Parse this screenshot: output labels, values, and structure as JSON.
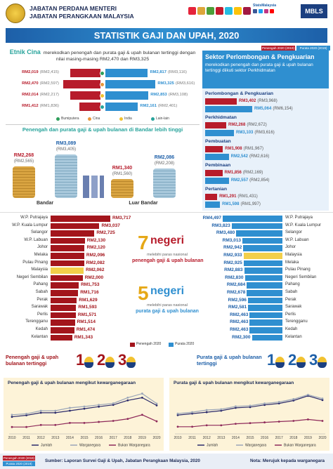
{
  "header": {
    "agency": [
      "JABATAN PERDANA MENTERI",
      "JABATAN PERANGKAAN MALAYSIA"
    ],
    "title": "STATISTIK GAJI DAN UPAH, 2020",
    "brand": "StatsMalaysia",
    "badge": "MBLS"
  },
  "legend": [
    {
      "label": "Penengah 2020 (2019)",
      "color": "#b71c2b"
    },
    {
      "label": "Purata 2020 (2019)",
      "color": "#2f8fd0"
    }
  ],
  "ethnic": {
    "highlight": "Etnik Cina",
    "text": "merekodkan penengah dan purata gaji & upah bulanan tertinggi dengan nilai masing-masing RM2,470 dan RM3,325",
    "groups": [
      {
        "name": "Bumiputera",
        "color": "#2e9e5b",
        "median": {
          "value": 2019,
          "label": "RM2,019",
          "previous": "(RM2,415)"
        },
        "mean": {
          "value": 2817,
          "label": "RM2,817",
          "previous": "(RM3,116)"
        }
      },
      {
        "name": "Cina",
        "color": "#e8973d",
        "median": {
          "value": 2470,
          "label": "RM2,470",
          "previous": "(RM2,597)"
        },
        "mean": {
          "value": 3325,
          "label": "RM3,325",
          "previous": "(RM3,616)"
        }
      },
      {
        "name": "India",
        "color": "#f2c230",
        "median": {
          "value": 2014,
          "label": "RM2,014",
          "previous": "(RM2,217)"
        },
        "mean": {
          "value": 2853,
          "label": "RM2,853",
          "previous": "(RM3,108)"
        }
      },
      {
        "name": "Lain-lain",
        "color": "#27a39b",
        "median": {
          "value": 1412,
          "label": "RM1,412",
          "previous": "(RM1,836)"
        },
        "mean": {
          "value": 2161,
          "label": "RM2,161",
          "previous": "(RM2,401)"
        }
      }
    ]
  },
  "urban": {
    "title": "Penengah dan purata gaji & upah bulanan di Bandar lebih tinggi",
    "groups": [
      {
        "name": "Bandar",
        "median": {
          "value": 2268,
          "label": "RM2,268",
          "previous": "(RM2,565)"
        },
        "mean": {
          "value": 3089,
          "label": "RM3,089",
          "previous": "(RM3,405)"
        }
      },
      {
        "name": "Luar Bandar",
        "median": {
          "value": 1340,
          "label": "RM1,340",
          "previous": "(RM1,560)"
        },
        "mean": {
          "value": 2086,
          "label": "RM2,086",
          "previous": "(RM2,208)"
        }
      }
    ]
  },
  "sector": {
    "title": "Sektor Perlombongan & Pengkuarian",
    "text": "merekodkan penengah dan purata gaji & upah bulanan tertinggi diikuti sektor Perkhidmatan",
    "groups": [
      {
        "name": "Perlombongan & Pengkuarian",
        "median": {
          "value": 3402,
          "label": "RM3,402",
          "previous": "(RM3,968)"
        },
        "mean": {
          "value": 5064,
          "label": "RM5,064",
          "previous": "(RM6,154)"
        }
      },
      {
        "name": "Perkhidmatan",
        "median": {
          "value": 2268,
          "label": "RM2,268",
          "previous": "(RM2,672)"
        },
        "mean": {
          "value": 3103,
          "label": "RM3,103",
          "previous": "(RM3,616)"
        }
      },
      {
        "name": "Pembuatan",
        "median": {
          "value": 1908,
          "label": "RM1,908",
          "previous": "(RM1,967)"
        },
        "mean": {
          "value": 2542,
          "label": "RM2,542",
          "previous": "(RM2,616)"
        }
      },
      {
        "name": "Pembinaan",
        "median": {
          "value": 1856,
          "label": "RM1,856",
          "previous": "(RM2,169)"
        },
        "mean": {
          "value": 2557,
          "label": "RM2,557",
          "previous": "(RM2,854)"
        }
      },
      {
        "name": "Pertanian",
        "median": {
          "value": 1291,
          "label": "RM1,291",
          "previous": "(RM1,431)"
        },
        "mean": {
          "value": 1598,
          "label": "RM1,598",
          "previous": "(RM1,997)"
        }
      }
    ]
  },
  "states": {
    "median": [
      {
        "name": "W.P. Putrajaya",
        "value": 3717,
        "label": "RM3,717",
        "color": "#a3151c"
      },
      {
        "name": "W.P. Kuala Lumpur",
        "value": 3037,
        "label": "RM3,037",
        "color": "#a3151c"
      },
      {
        "name": "Selangor",
        "value": 2725,
        "label": "RM2,725",
        "color": "#a3151c"
      },
      {
        "name": "W.P. Labuan",
        "value": 2130,
        "label": "RM2,130",
        "color": "#a3151c"
      },
      {
        "name": "Johor",
        "value": 2120,
        "label": "RM2,120",
        "color": "#a3151c"
      },
      {
        "name": "Melaka",
        "value": 2096,
        "label": "RM2,096",
        "color": "#a3151c"
      },
      {
        "name": "Pulau Pinang",
        "value": 2082,
        "label": "RM2,082",
        "color": "#a3151c"
      },
      {
        "name": "Malaysia",
        "value": 2062,
        "label": "RM2,062",
        "color": "#f2cf4a"
      },
      {
        "name": "Negeri Sembilan",
        "value": 2000,
        "label": "RM2,000",
        "color": "#a3151c"
      },
      {
        "name": "Pahang",
        "value": 1753,
        "label": "RM1,753",
        "color": "#a3151c"
      },
      {
        "name": "Sabah",
        "value": 1716,
        "label": "RM1,716",
        "color": "#a3151c"
      },
      {
        "name": "Perak",
        "value": 1629,
        "label": "RM1,629",
        "color": "#a3151c"
      },
      {
        "name": "Sarawak",
        "value": 1593,
        "label": "RM1,593",
        "color": "#a3151c"
      },
      {
        "name": "Perlis",
        "value": 1571,
        "label": "RM1,571",
        "color": "#a3151c"
      },
      {
        "name": "Terengganu",
        "value": 1514,
        "label": "RM1,514",
        "color": "#a3151c"
      },
      {
        "name": "Kedah",
        "value": 1474,
        "label": "RM1,474",
        "color": "#a3151c"
      },
      {
        "name": "Kelantan",
        "value": 1343,
        "label": "RM1,343",
        "color": "#a3151c"
      }
    ],
    "mean": [
      {
        "name": "W.P. Putrajaya",
        "value": 4497,
        "label": "RM4,497",
        "color": "#2f8fd0"
      },
      {
        "name": "W.P. Kuala Lumpur",
        "value": 3823,
        "label": "RM3,823",
        "color": "#2f8fd0"
      },
      {
        "name": "Selangor",
        "value": 3480,
        "label": "RM3,480",
        "color": "#2f8fd0"
      },
      {
        "name": "W.P. Labuan",
        "value": 3013,
        "label": "RM3,013",
        "color": "#2f8fd0"
      },
      {
        "name": "Johor",
        "value": 2942,
        "label": "RM2,942",
        "color": "#2f8fd0"
      },
      {
        "name": "Malaysia",
        "value": 2933,
        "label": "RM2,933",
        "color": "#f2cf4a"
      },
      {
        "name": "Melaka",
        "value": 2925,
        "label": "RM2,925",
        "color": "#2f8fd0"
      },
      {
        "name": "Pulau Pinang",
        "value": 2883,
        "label": "RM2,883",
        "color": "#2f8fd0"
      },
      {
        "name": "Negeri Sembilan",
        "value": 2830,
        "label": "RM2,830",
        "color": "#2f8fd0"
      },
      {
        "name": "Pahang",
        "value": 2684,
        "label": "RM2,684",
        "color": "#2f8fd0"
      },
      {
        "name": "Sabah",
        "value": 2678,
        "label": "RM2,678",
        "color": "#2f8fd0"
      },
      {
        "name": "Perak",
        "value": 2596,
        "label": "RM2,596",
        "color": "#2f8fd0"
      },
      {
        "name": "Sarawak",
        "value": 2581,
        "label": "RM2,581",
        "color": "#2f8fd0"
      },
      {
        "name": "Perlis",
        "value": 2463,
        "label": "RM2,463",
        "color": "#2f8fd0"
      },
      {
        "name": "Terengganu",
        "value": 2463,
        "label": "RM2,463",
        "color": "#2f8fd0"
      },
      {
        "name": "Kedah",
        "value": 2463,
        "label": "RM2,463",
        "color": "#2f8fd0"
      },
      {
        "name": "Kelantan",
        "value": 2300,
        "label": "RM2,300",
        "color": "#2f8fd0"
      }
    ],
    "median_callout": {
      "count": "7",
      "word": "negeri",
      "line1": "melebihi paras nasional",
      "line2": "penengah gaji & upah bulanan"
    },
    "mean_callout": {
      "count": "5",
      "word": "negeri",
      "line1": "melebihi paras nasional",
      "line2": "purata gaji & upah bulanan"
    },
    "legend": [
      {
        "label": "Penengah 2020",
        "color": "#a3151c"
      },
      {
        "label": "Purata 2020",
        "color": "#2f8fd0"
      }
    ]
  },
  "top3": {
    "median_title": "Penengah gaji & upah bulanan tertinggi",
    "mean_title": "Purata gaji & upah bulanan tertinggi",
    "ranks": [
      1,
      2,
      3
    ]
  },
  "chart_data": [
    {
      "type": "line",
      "title": "Penengah gaji & upah bulanan mengikut kewarganegaraan",
      "categories": [
        "2010",
        "2011",
        "2012",
        "2013",
        "2014",
        "2015",
        "2016",
        "2017",
        "2018",
        "2019",
        "2020"
      ],
      "ylim": [
        800,
        2800
      ],
      "series": [
        {
          "name": "Jumlah",
          "color": "#2b2b6b",
          "values": [
            1500,
            1575,
            1700,
            1700,
            1800,
            1900,
            2000,
            2087,
            2308,
            2442,
            2062
          ]
        },
        {
          "name": "Warganegara",
          "color": "#9aa5b8",
          "values": [
            1600,
            1650,
            1800,
            1800,
            1942,
            2008,
            2087,
            2160,
            2442,
            2642,
            2150
          ]
        },
        {
          "name": "Bukan Warganegara",
          "color": "#8e2a5a",
          "values": [
            1000,
            1000,
            1100,
            1100,
            1200,
            1200,
            1250,
            1300,
            1400,
            1600,
            1280
          ]
        }
      ]
    },
    {
      "type": "line",
      "title": "Purata gaji & upah bulanan mengikut kewarganegaraan",
      "categories": [
        "2010",
        "2011",
        "2012",
        "2013",
        "2014",
        "2015",
        "2016",
        "2017",
        "2018",
        "2019",
        "2020"
      ],
      "ylim": [
        800,
        3600
      ],
      "series": [
        {
          "name": "Jumlah",
          "color": "#2b2b6b",
          "values": [
            1900,
            2000,
            2100,
            2200,
            2400,
            2450,
            2600,
            2700,
            2900,
            3224,
            2933
          ]
        },
        {
          "name": "Warganegara",
          "color": "#9aa5b8",
          "values": [
            2000,
            2100,
            2250,
            2300,
            2500,
            2550,
            2700,
            2800,
            3000,
            3300,
            3037
          ]
        },
        {
          "name": "Bukan Warganegara",
          "color": "#8e2a5a",
          "values": [
            1100,
            1100,
            1200,
            1200,
            1300,
            1350,
            1400,
            1450,
            1500,
            1600,
            1500
          ]
        }
      ]
    }
  ],
  "footer": {
    "source": "Sumber: Laporan Survei Gaji & Upah, Jabatan Perangkaan Malaysia, 2020",
    "note": "Nota: Merujuk kepada warganegara"
  }
}
